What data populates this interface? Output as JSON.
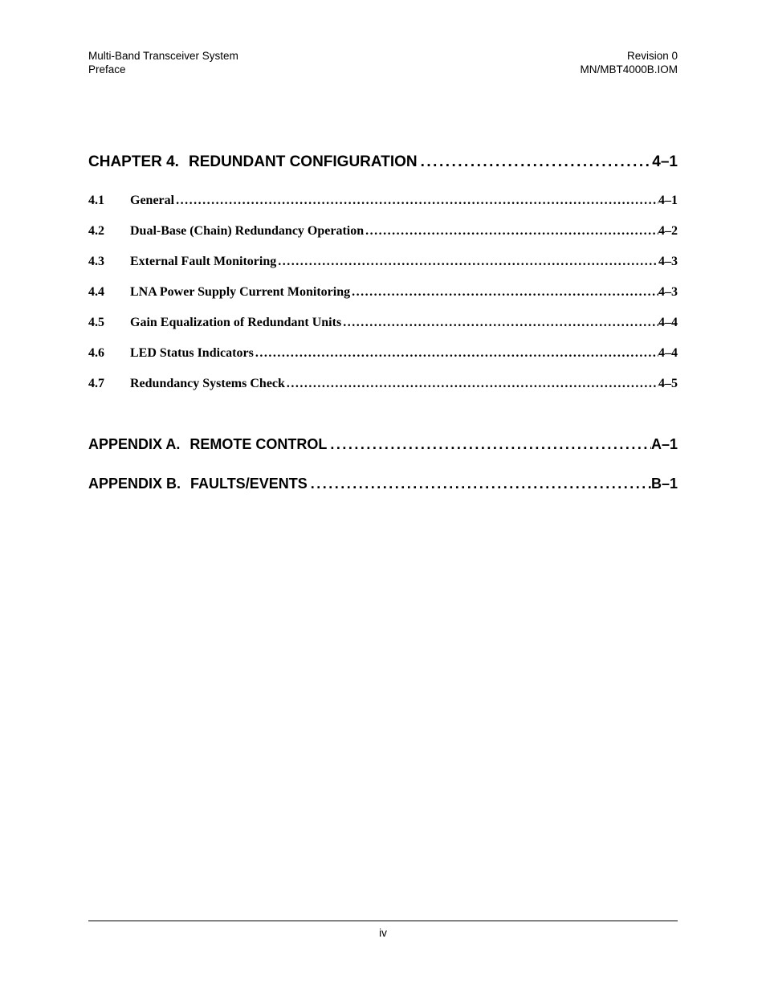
{
  "header": {
    "left_line1": "Multi-Band Transceiver System",
    "left_line2": "Preface",
    "right_line1": "Revision 0",
    "right_line2": "MN/MBT4000B.IOM"
  },
  "chapter": {
    "label": "CHAPTER 4.",
    "title": "REDUNDANT CONFIGURATION",
    "page": "4–1"
  },
  "sections": [
    {
      "num": "4.1",
      "title": "General",
      "page": "4–1"
    },
    {
      "num": "4.2",
      "title": "Dual-Base (Chain) Redundancy Operation",
      "page": "4–2"
    },
    {
      "num": "4.3",
      "title": "External Fault Monitoring",
      "page": "4–3"
    },
    {
      "num": "4.4",
      "title": "LNA Power Supply Current Monitoring",
      "page": "4–3"
    },
    {
      "num": "4.5",
      "title": "Gain Equalization of Redundant Units",
      "page": "4–4"
    },
    {
      "num": "4.6",
      "title": "LED Status Indicators",
      "page": "4–4"
    },
    {
      "num": "4.7",
      "title": "Redundancy Systems Check",
      "page": "4–5"
    }
  ],
  "appendices": [
    {
      "label": "APPENDIX A.",
      "title": "REMOTE CONTROL",
      "page": "A–1"
    },
    {
      "label": "APPENDIX B.",
      "title": "FAULTS/EVENTS",
      "page": "B–1"
    }
  ],
  "footer": {
    "page_number": "iv"
  },
  "dots": "........................................................................................................................................................................................................................"
}
